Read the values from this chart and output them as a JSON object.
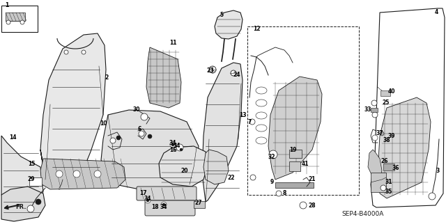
{
  "background_color": "#ffffff",
  "figsize": [
    6.4,
    3.19
  ],
  "dpi": 100,
  "diagram_code": "SEP4-B4000A",
  "line_color": "#1a1a1a",
  "gray_light": "#c8c8c8",
  "gray_mid": "#aaaaaa",
  "gray_dark": "#888888",
  "label_fontsize": 5.5,
  "label_color": "#000000"
}
